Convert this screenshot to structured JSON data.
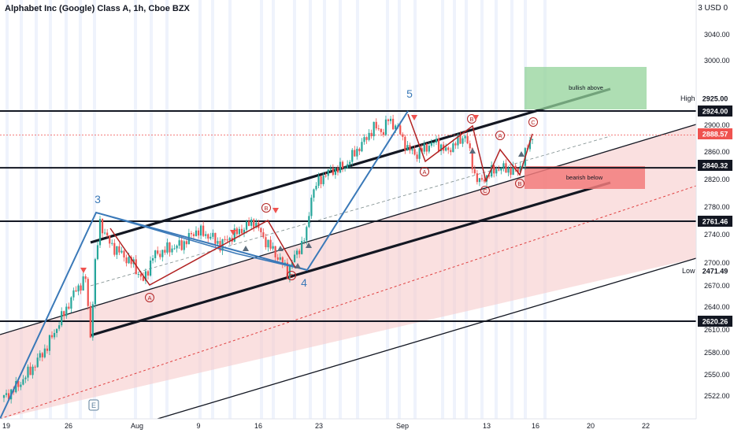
{
  "header": {
    "title": "Alphabet Inc (Google) Class A, 1h, Cboe BZX",
    "price_scale_label": "3",
    "currency_label": "USD 0"
  },
  "colors": {
    "up": "#26a69a",
    "down": "#ef5350",
    "wave_blue": "#3a79b8",
    "wave_red": "#b22222",
    "channel_fill": "#f5c6c6",
    "bull_box": "#93d39a",
    "bear_box": "#f27b7b",
    "highlight_label": "#131722"
  },
  "chart_data": {
    "type": "candlestick",
    "title": "Alphabet Inc (Google) Class A, 1h, Cboe BZX",
    "ylim": [
      2500,
      3070
    ],
    "x_ticks": [
      "19",
      "26",
      "Aug",
      "9",
      "16",
      "23",
      "Sep",
      "13",
      "16",
      "20",
      "22"
    ],
    "y_ticks": [
      2522,
      2550,
      2580,
      2610,
      2640,
      2670,
      2700,
      2740,
      2780,
      2820,
      2860,
      2900,
      2925,
      3000,
      3040
    ],
    "y_tick_labels": [
      "2522.00",
      "2550.00",
      "2580.00",
      "2610.00",
      "2640.00",
      "2670.00",
      "2700.00",
      "2740.00",
      "2780.00",
      "2820.00",
      "2860.00",
      "2900.00",
      "2925.00",
      "3000.00",
      "3040.00"
    ],
    "horizontal_levels": [
      {
        "value": 2924.0,
        "label": "2924.00"
      },
      {
        "value": 2840.32,
        "label": "2840.32"
      },
      {
        "value": 2761.46,
        "label": "2761.46"
      },
      {
        "value": 2620.26,
        "label": "2620.26"
      }
    ],
    "last_price": {
      "value": 2888.57,
      "label": "2888.57"
    },
    "high": {
      "value": 2925.0,
      "tag": "High",
      "label": "2925.00"
    },
    "low": {
      "value": 2471.49,
      "tag": "Low",
      "label": "2471.49"
    },
    "wave_labels": [
      "3",
      "4",
      "5"
    ],
    "sub_wave_labels": [
      "A",
      "B",
      "C"
    ],
    "boxes": [
      {
        "label": "bullish above",
        "kind": "bull"
      },
      {
        "label": "bearish below",
        "kind": "bear"
      }
    ],
    "event_marker": "E",
    "price_path": [
      [
        0,
        2512
      ],
      [
        6,
        2530
      ],
      [
        12,
        2555
      ],
      [
        18,
        2585
      ],
      [
        24,
        2625
      ],
      [
        30,
        2665
      ],
      [
        34,
        2680
      ],
      [
        36,
        2600
      ],
      [
        38,
        2700
      ],
      [
        40,
        2760
      ],
      [
        44,
        2730
      ],
      [
        48,
        2718
      ],
      [
        54,
        2700
      ],
      [
        58,
        2676
      ],
      [
        62,
        2712
      ],
      [
        68,
        2722
      ],
      [
        74,
        2728
      ],
      [
        80,
        2748
      ],
      [
        86,
        2740
      ],
      [
        90,
        2728
      ],
      [
        94,
        2738
      ],
      [
        100,
        2752
      ],
      [
        104,
        2762
      ],
      [
        108,
        2738
      ],
      [
        112,
        2720
      ],
      [
        116,
        2702
      ],
      [
        118,
        2690
      ],
      [
        120,
        2704
      ],
      [
        124,
        2730
      ],
      [
        126,
        2745
      ],
      [
        128,
        2800
      ],
      [
        130,
        2815
      ],
      [
        134,
        2832
      ],
      [
        138,
        2838
      ],
      [
        142,
        2842
      ],
      [
        146,
        2862
      ],
      [
        150,
        2880
      ],
      [
        154,
        2900
      ],
      [
        158,
        2894
      ],
      [
        160,
        2912
      ],
      [
        164,
        2898
      ],
      [
        168,
        2868
      ],
      [
        172,
        2860
      ],
      [
        176,
        2872
      ],
      [
        180,
        2878
      ],
      [
        184,
        2864
      ],
      [
        188,
        2876
      ],
      [
        192,
        2888
      ],
      [
        194,
        2862
      ],
      [
        196,
        2830
      ],
      [
        198,
        2818
      ],
      [
        202,
        2832
      ],
      [
        206,
        2840
      ],
      [
        210,
        2838
      ],
      [
        214,
        2836
      ],
      [
        216,
        2850
      ],
      [
        218,
        2870
      ],
      [
        220,
        2888
      ]
    ]
  }
}
